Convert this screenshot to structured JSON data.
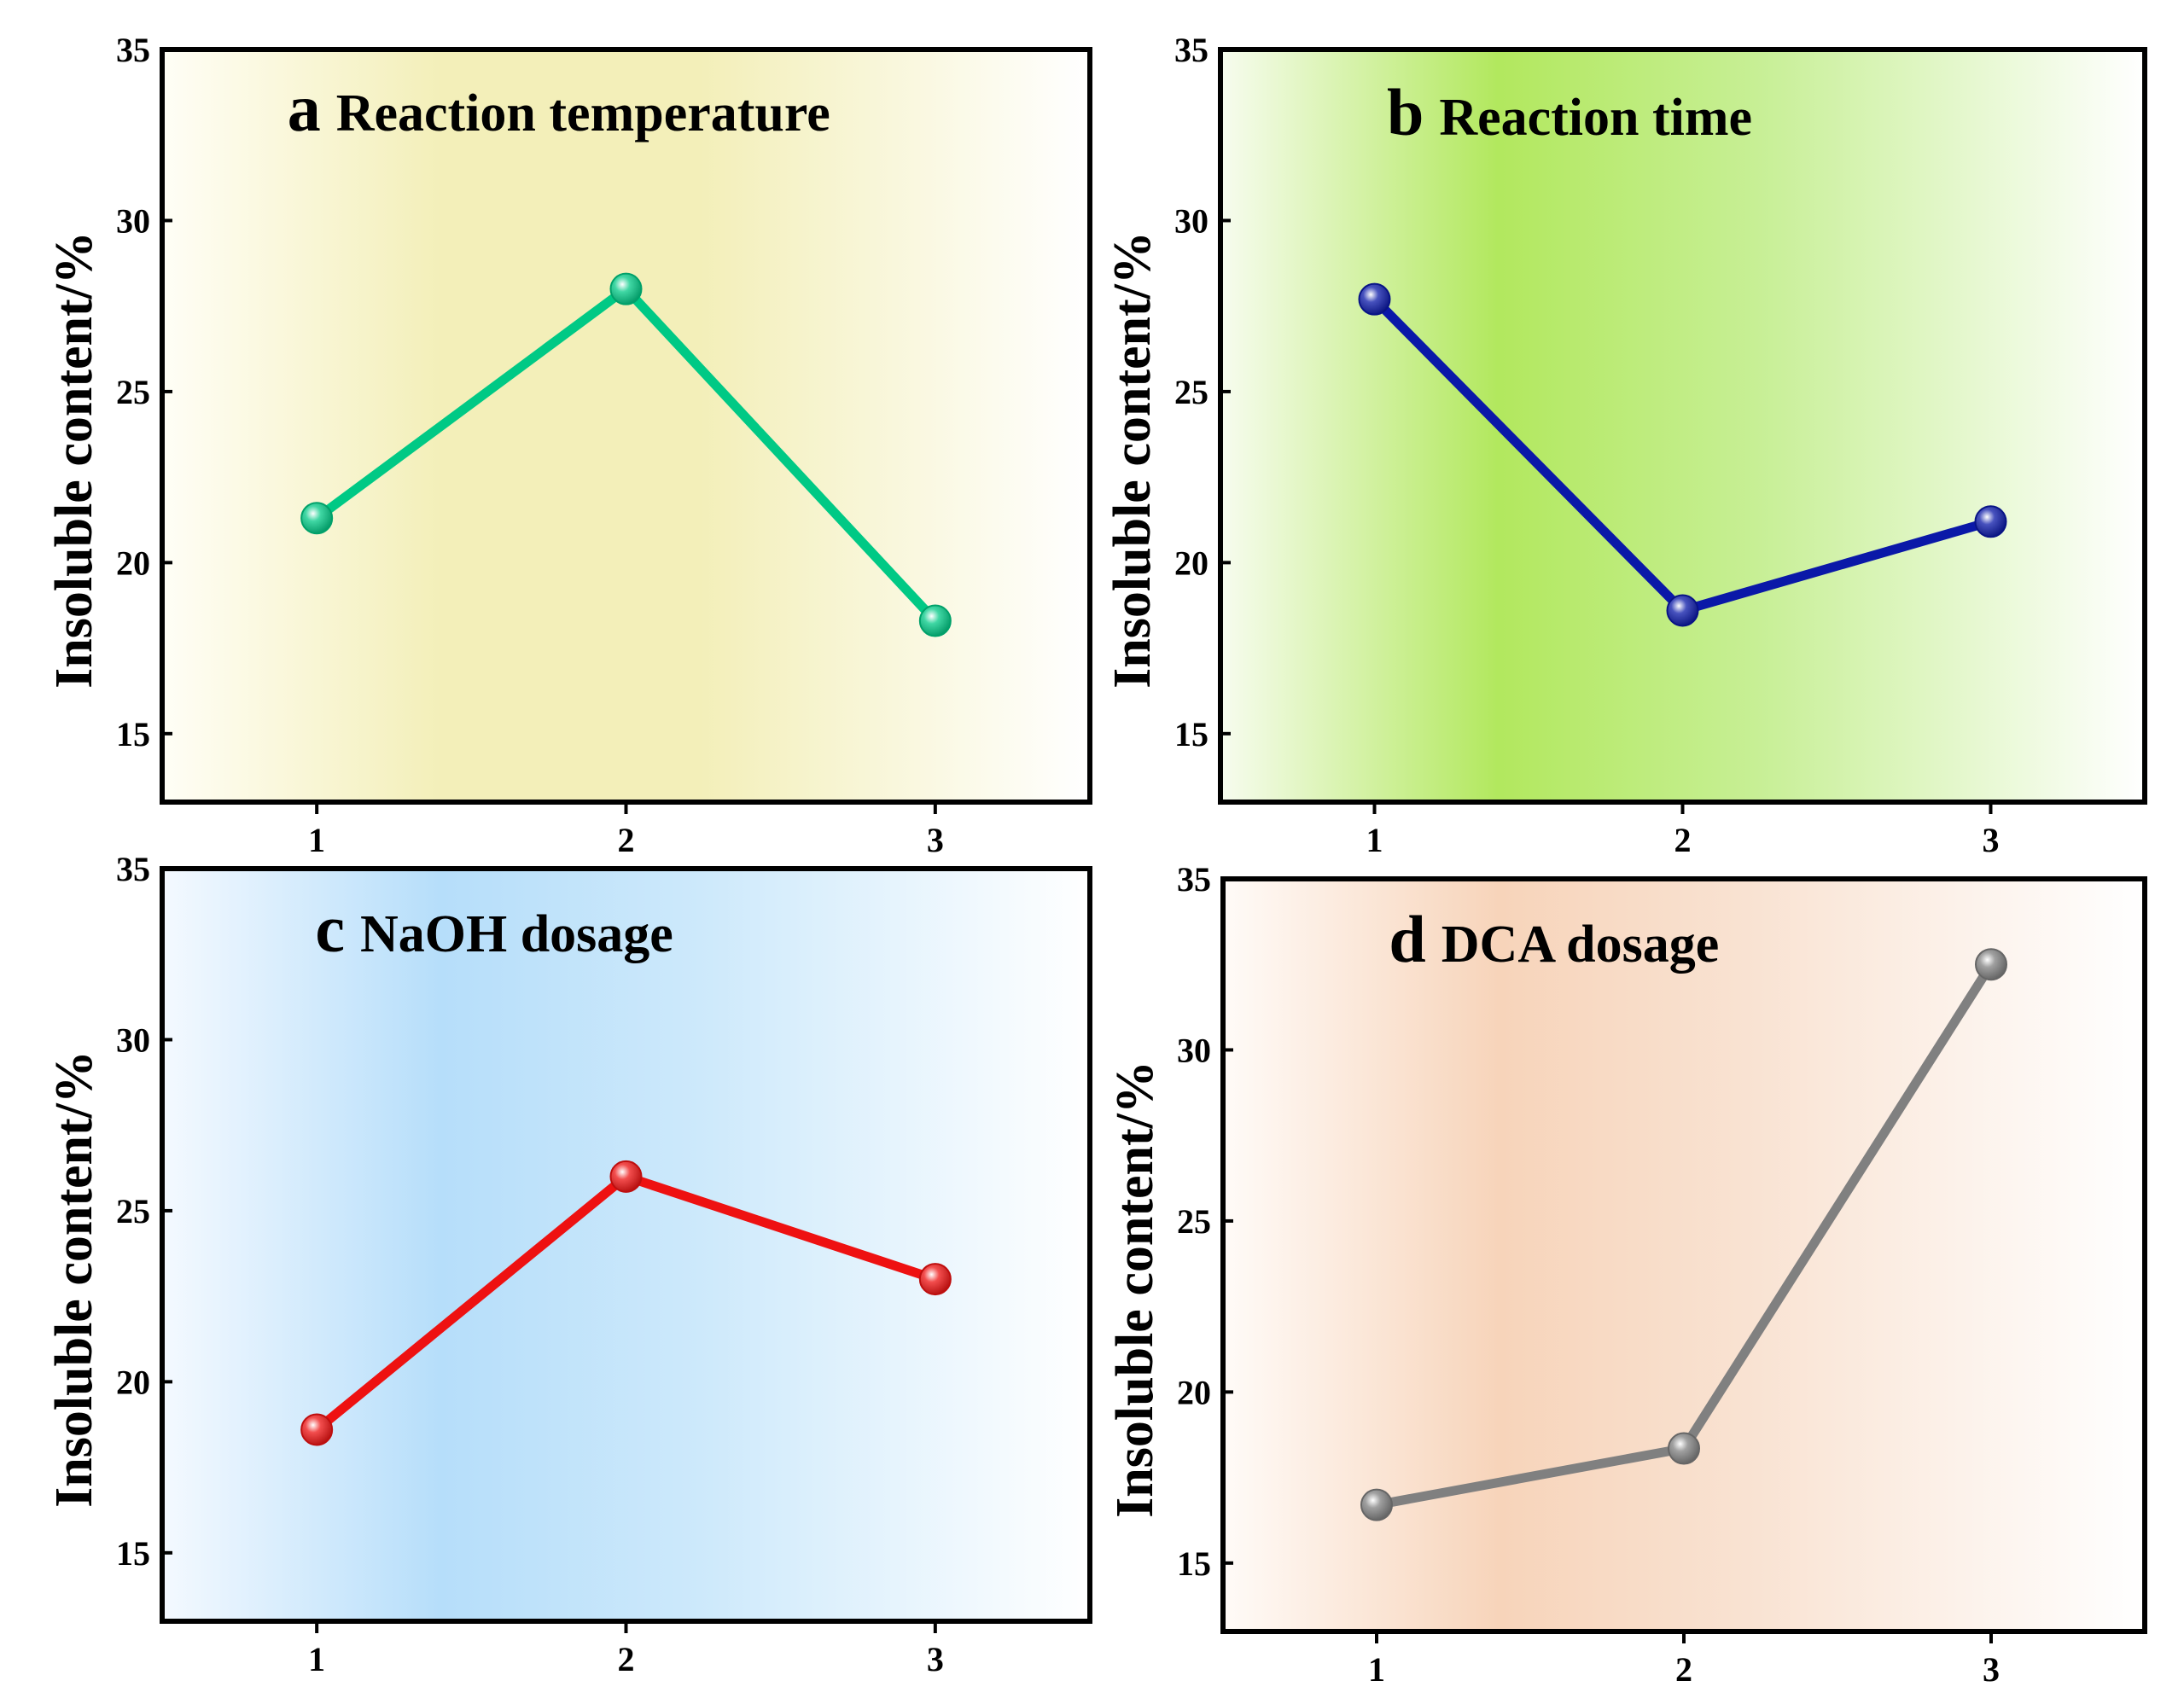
{
  "chart_data": [
    {
      "type": "line",
      "letter": "a",
      "title": "Reaction temperature",
      "ylabel": "Insoluble content/%",
      "xlabel": "",
      "categories": [
        "1",
        "2",
        "3"
      ],
      "x": [
        1,
        2,
        3
      ],
      "values": [
        21.3,
        28.0,
        18.3
      ],
      "xlim": [
        0.5,
        3.5
      ],
      "ylim": [
        13,
        35
      ],
      "yticks": [
        15,
        20,
        25,
        30,
        35
      ],
      "color": "#00c985",
      "bg_gradient": [
        "#fffef6",
        "#f3efb9",
        "#f3efb9",
        "#ffffff"
      ],
      "grid": false
    },
    {
      "type": "line",
      "letter": "b",
      "title": "Reaction time",
      "ylabel": "Insoluble content/%",
      "xlabel": "",
      "categories": [
        "1",
        "2",
        "3"
      ],
      "x": [
        1,
        2,
        3
      ],
      "values": [
        27.7,
        18.6,
        21.2
      ],
      "xlim": [
        0.5,
        3.5
      ],
      "ylim": [
        13,
        35
      ],
      "yticks": [
        15,
        20,
        25,
        30,
        35
      ],
      "color": "#0a18a8",
      "bg_gradient": [
        "#f7fcef",
        "#b2e85e",
        "#c7ef95",
        "#ffffff"
      ],
      "grid": false
    },
    {
      "type": "line",
      "letter": "c",
      "title": "NaOH dosage",
      "ylabel": "Insoluble content/%",
      "xlabel": "",
      "categories": [
        "1",
        "2",
        "3"
      ],
      "x": [
        1,
        2,
        3
      ],
      "values": [
        18.6,
        26.0,
        23.0
      ],
      "xlim": [
        0.5,
        3.5
      ],
      "ylim": [
        13,
        35
      ],
      "yticks": [
        15,
        20,
        25,
        30,
        35
      ],
      "color": "#ee1111",
      "bg_gradient": [
        "#f4f9ff",
        "#b6defa",
        "#cde9fb",
        "#ffffff"
      ],
      "grid": false
    },
    {
      "type": "line",
      "letter": "d",
      "title": "DCA dosage",
      "ylabel": "Insoluble content/%",
      "xlabel": "",
      "categories": [
        "1",
        "2",
        "3"
      ],
      "x": [
        1,
        2,
        3
      ],
      "values": [
        16.7,
        18.35,
        32.5
      ],
      "xlim": [
        0.5,
        3.5
      ],
      "ylim": [
        13,
        35
      ],
      "yticks": [
        15,
        20,
        25,
        30,
        35
      ],
      "color": "#808080",
      "bg_gradient": [
        "#fffbf8",
        "#f7d4ba",
        "#f9e3d3",
        "#ffffff"
      ],
      "grid": false
    }
  ]
}
